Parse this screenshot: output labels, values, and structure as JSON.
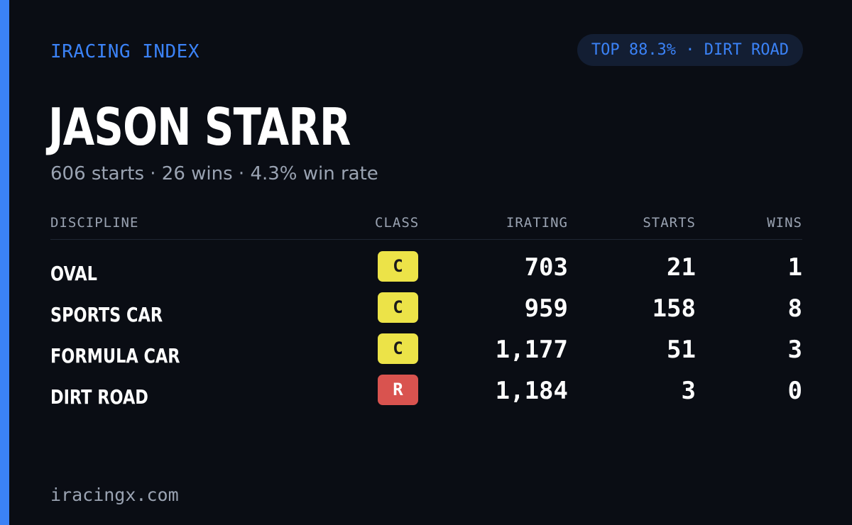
{
  "header": {
    "brand": "IRACING INDEX",
    "rank_badge": "TOP 88.3% · DIRT ROAD"
  },
  "driver": {
    "name": "JASON STARR",
    "summary": "606 starts · 26 wins · 4.3% win rate"
  },
  "table": {
    "columns": {
      "discipline": "DISCIPLINE",
      "class": "CLASS",
      "irating": "IRATING",
      "starts": "STARTS",
      "wins": "WINS"
    },
    "rows": [
      {
        "discipline": "OVAL",
        "class": "C",
        "irating": "703",
        "starts": "21",
        "wins": "1"
      },
      {
        "discipline": "SPORTS CAR",
        "class": "C",
        "irating": "959",
        "starts": "158",
        "wins": "8"
      },
      {
        "discipline": "FORMULA CAR",
        "class": "C",
        "irating": "1,177",
        "starts": "51",
        "wins": "3"
      },
      {
        "discipline": "DIRT ROAD",
        "class": "R",
        "irating": "1,184",
        "starts": "3",
        "wins": "0"
      }
    ]
  },
  "footer": {
    "domain": "iracingx.com"
  },
  "colors": {
    "background": "#0a0d14",
    "accent": "#3b82f6",
    "class_c": "#ece348",
    "class_r": "#d9534f",
    "muted_text": "#9aa3b2"
  }
}
